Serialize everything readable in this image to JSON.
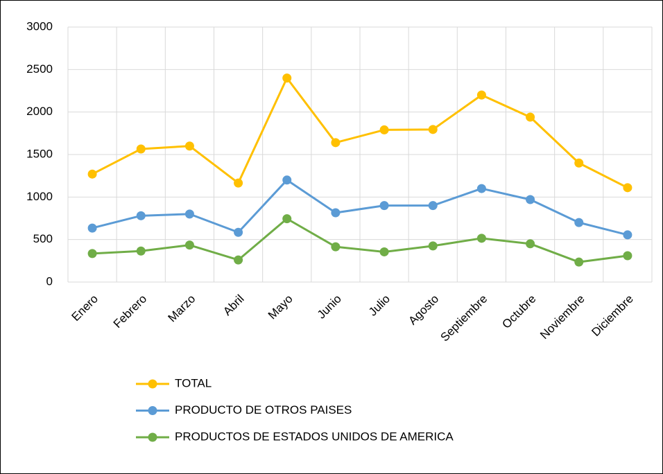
{
  "chart_data": {
    "type": "line",
    "categories": [
      "Enero",
      "Febrero",
      "Marzo",
      "Abril",
      "Mayo",
      "Junio",
      "Julio",
      "Agosto",
      "Septiembre",
      "Octubre",
      "Noviembre",
      "Diciembre"
    ],
    "series": [
      {
        "name": "TOTAL",
        "color": "#ffc000",
        "values": [
          1270,
          1565,
          1600,
          1165,
          2400,
          1640,
          1790,
          1795,
          2200,
          1940,
          1400,
          1110
        ]
      },
      {
        "name": "PRODUCTO DE OTROS PAISES",
        "color": "#5b9bd5",
        "values": [
          635,
          780,
          800,
          585,
          1200,
          815,
          900,
          900,
          1100,
          970,
          700,
          555
        ]
      },
      {
        "name": "PRODUCTOS DE ESTADOS UNIDOS DE AMERICA",
        "color": "#70ad47",
        "values": [
          335,
          365,
          435,
          260,
          745,
          415,
          355,
          425,
          515,
          450,
          235,
          310
        ]
      }
    ],
    "ylim": [
      0,
      3000
    ],
    "yticks": [
      0,
      500,
      1000,
      1500,
      2000,
      2500,
      3000
    ],
    "grid": true,
    "legend": "bottom"
  }
}
